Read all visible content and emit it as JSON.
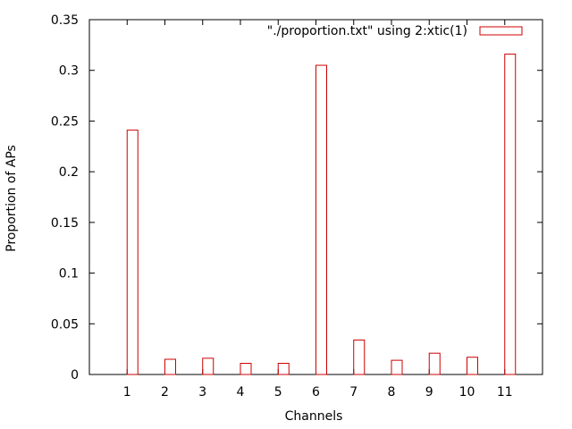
{
  "chart_data": {
    "type": "bar",
    "xlabel": "Channels",
    "ylabel": "Proportion of APs",
    "ylim": [
      0,
      0.35
    ],
    "yticks": [
      "0",
      "0.05",
      "0.1",
      "0.15",
      "0.2",
      "0.25",
      "0.3",
      "0.35"
    ],
    "categories": [
      "1",
      "2",
      "3",
      "4",
      "5",
      "6",
      "7",
      "8",
      "9",
      "10",
      "11"
    ],
    "series": [
      {
        "name": "\"./proportion.txt\" using 2:xtic(1)",
        "color": "#cc0000",
        "values": [
          0.241,
          0.015,
          0.016,
          0.011,
          0.011,
          0.305,
          0.034,
          0.014,
          0.021,
          0.017,
          0.316
        ]
      }
    ],
    "grid": false,
    "legend_position": "top-right"
  }
}
